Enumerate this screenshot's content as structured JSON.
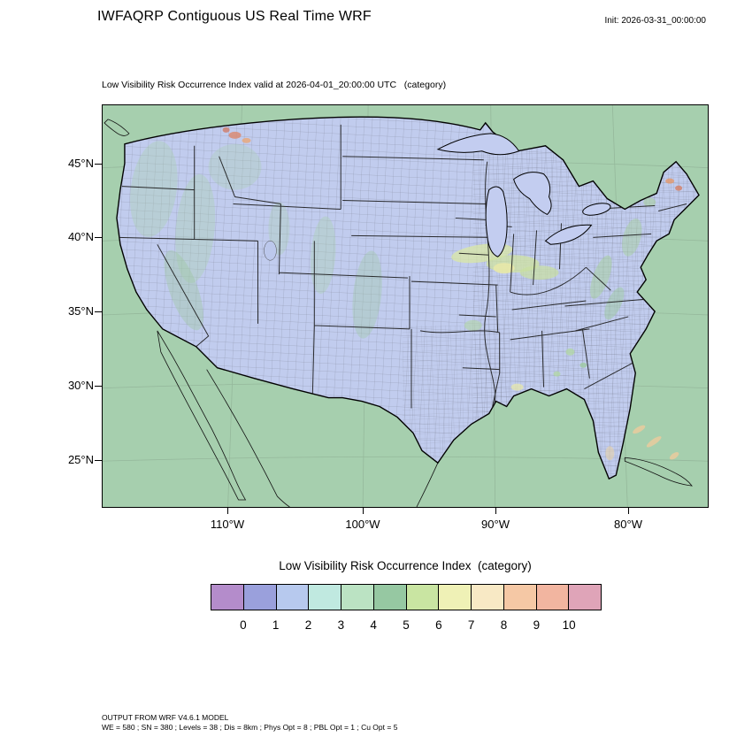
{
  "header": {
    "title": "IWFAQRP Contiguous US Real Time WRF",
    "init_label": "Init: 2026-03-31_00:00:00"
  },
  "map": {
    "subtitle": "Low Visibility Risk Occurrence Index valid at 2026-04-01_20:00:00 UTC   (category)",
    "y_ticks": [
      "45°N",
      "40°N",
      "35°N",
      "30°N",
      "25°N"
    ],
    "x_ticks": [
      "110°W",
      "100°W",
      "90°W",
      "80°W"
    ],
    "land_fill": "#c1ccee",
    "background_fill": "#a6cfae"
  },
  "legend": {
    "title": "Low Visibility Risk Occurrence Index  (category)",
    "categories": [
      "0",
      "1",
      "2",
      "3",
      "4",
      "5",
      "6",
      "7",
      "8",
      "9",
      "10"
    ],
    "colors": [
      "#b48ccb",
      "#9aa0dc",
      "#b7c9ee",
      "#c0e9e0",
      "#bbe3c3",
      "#96c8a2",
      "#c9e5a2",
      "#eff1b6",
      "#f8e9c5",
      "#f5c8a5",
      "#f2b5a0",
      "#dfa4b8"
    ]
  },
  "footer": {
    "line1": "OUTPUT FROM WRF V4.6.1 MODEL",
    "line2": "WE = 580 ; SN = 380 ; Levels = 38 ; Dis = 8km ; Phys Opt = 8 ; PBL Opt = 1 ; Cu Opt = 5"
  }
}
